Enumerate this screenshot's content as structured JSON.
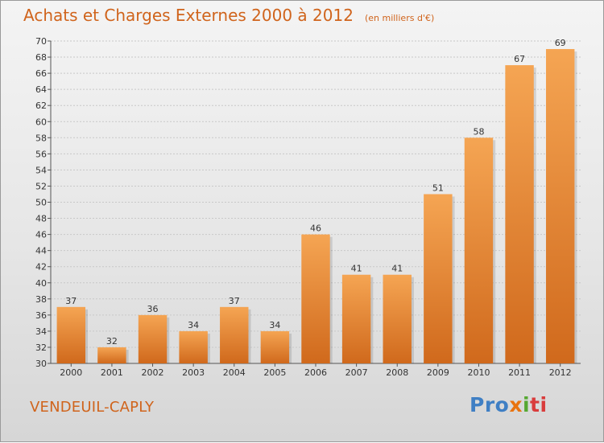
{
  "header": {
    "title": "Achats et Charges Externes 2000 à 2012",
    "unit": "(en milliers d'€)"
  },
  "footer": {
    "town": "VENDEUIL-CAPLY",
    "brand": {
      "p1": "Pro",
      "p2": "x",
      "p3": "i",
      "p4": "ti"
    }
  },
  "colors": {
    "bar_light": "#f5a553",
    "bar_dark": "#d0691c",
    "title": "#d0641c"
  },
  "chart_data": {
    "type": "bar",
    "title": "Achats et Charges Externes 2000 à 2012",
    "subtitle": "(en milliers d'€)",
    "xlabel": "",
    "ylabel": "",
    "categories": [
      "2000",
      "2001",
      "2002",
      "2003",
      "2004",
      "2005",
      "2006",
      "2007",
      "2008",
      "2009",
      "2010",
      "2011",
      "2012"
    ],
    "values": [
      37,
      32,
      36,
      34,
      37,
      34,
      46,
      41,
      41,
      51,
      58,
      67,
      69
    ],
    "ylim": [
      30,
      70
    ],
    "yticks": [
      30,
      32,
      34,
      36,
      38,
      40,
      42,
      44,
      46,
      48,
      50,
      52,
      54,
      56,
      58,
      60,
      62,
      64,
      66,
      68,
      70
    ],
    "grid": true,
    "data_labels": true
  }
}
